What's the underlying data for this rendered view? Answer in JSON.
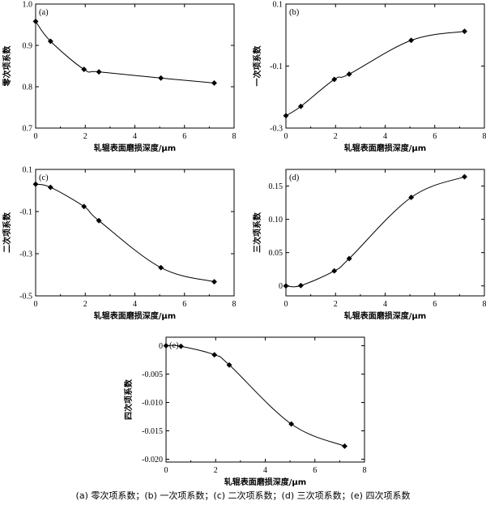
{
  "caption": "(a)  零次项系数；(b)  一次项系数；(c)  二次项系数；(d)  三次项系数；(e)  四次项系数",
  "chart_data": [
    {
      "type": "line",
      "panel_label": "(a)",
      "xlabel": "轧辊表面磨损深度/μm",
      "ylabel": "零次项系数",
      "xlim": [
        0,
        8
      ],
      "ylim": [
        0.7,
        1.0
      ],
      "xticks": [
        0,
        2,
        4,
        6,
        8
      ],
      "xtick_labels": [
        "0",
        "2",
        "4",
        "6",
        "8"
      ],
      "yticks": [
        0.7,
        0.8,
        0.9,
        1.0
      ],
      "ytick_labels": [
        "0.7",
        "0.8",
        "0.9",
        "1.0"
      ],
      "x": [
        0,
        0.6,
        1.95,
        2.55,
        5.05,
        7.2
      ],
      "y": [
        0.958,
        0.91,
        0.842,
        0.836,
        0.821,
        0.809
      ]
    },
    {
      "type": "line",
      "panel_label": "(b)",
      "xlabel": "轧辊表面磨损深度/μm",
      "ylabel": "一次项系数",
      "xlim": [
        0,
        8
      ],
      "ylim": [
        -0.3,
        0.1
      ],
      "xticks": [
        0,
        2,
        4,
        6,
        8
      ],
      "xtick_labels": [
        "0",
        "2",
        "4",
        "6",
        "8"
      ],
      "yticks": [
        -0.3,
        -0.1,
        0.1
      ],
      "ytick_labels": [
        "-0.3",
        "-0.1",
        "0.1"
      ],
      "x": [
        0,
        0.6,
        1.95,
        2.55,
        5.05,
        7.2
      ],
      "y": [
        -0.26,
        -0.23,
        -0.143,
        -0.126,
        -0.017,
        0.012
      ]
    },
    {
      "type": "line",
      "panel_label": "(c)",
      "xlabel": "轧辊表面磨损深度/μm",
      "ylabel": "二次项系数",
      "xlim": [
        0,
        8
      ],
      "ylim": [
        -0.5,
        0.1
      ],
      "xticks": [
        0,
        2,
        4,
        6,
        8
      ],
      "xtick_labels": [
        "0",
        "2",
        "4",
        "6",
        "8"
      ],
      "yticks": [
        -0.5,
        -0.3,
        -0.1,
        0.1
      ],
      "ytick_labels": [
        "-0.5",
        "-0.3",
        "-0.1",
        "0.1"
      ],
      "x": [
        0,
        0.6,
        1.95,
        2.55,
        5.05,
        7.2
      ],
      "y": [
        0.03,
        0.015,
        -0.076,
        -0.143,
        -0.366,
        -0.433
      ]
    },
    {
      "type": "line",
      "panel_label": "(d)",
      "xlabel": "轧辊表面磨损深度/μm",
      "ylabel": "三次项系数",
      "xlim": [
        0,
        8
      ],
      "ylim": [
        -0.015,
        0.175
      ],
      "xticks": [
        0,
        2,
        4,
        6,
        8
      ],
      "xtick_labels": [
        "0",
        "2",
        "4",
        "6",
        "8"
      ],
      "yticks": [
        0,
        0.05,
        0.1,
        0.15
      ],
      "ytick_labels": [
        "0",
        "0.05",
        "0.10",
        "0.15"
      ],
      "x": [
        0,
        0.6,
        1.95,
        2.55,
        5.05,
        7.2
      ],
      "y": [
        0.0,
        0.0005,
        0.0225,
        0.041,
        0.133,
        0.164
      ]
    },
    {
      "type": "line",
      "panel_label": "(e)",
      "xlabel": "轧辊表面磨损深度/μm",
      "ylabel": "四次项系数",
      "xlim": [
        0,
        8
      ],
      "ylim": [
        -0.0205,
        0.0015
      ],
      "xticks": [
        0,
        2,
        4,
        6,
        8
      ],
      "xtick_labels": [
        "0",
        "2",
        "4",
        "6",
        "8"
      ],
      "yticks": [
        0,
        -0.005,
        -0.01,
        -0.015,
        -0.02
      ],
      "ytick_labels": [
        "0",
        "-0.005",
        "-0.010",
        "-0.015",
        "-0.020"
      ],
      "x": [
        0,
        0.6,
        1.95,
        2.55,
        5.05,
        7.2
      ],
      "y": [
        0.0,
        -0.0001,
        -0.0016,
        -0.0034,
        -0.0138,
        -0.0177
      ]
    }
  ]
}
